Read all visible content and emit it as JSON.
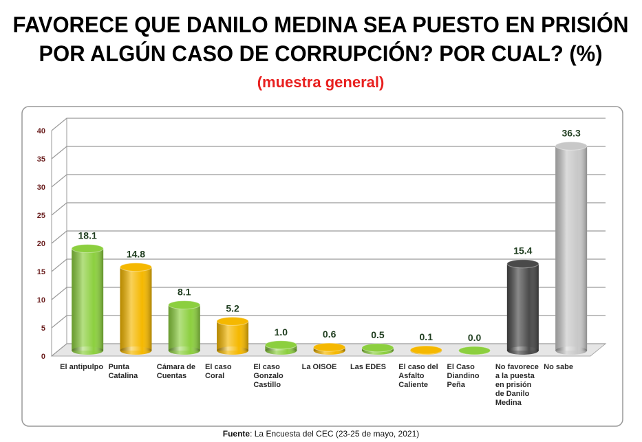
{
  "chart_data": {
    "type": "bar3d",
    "title": [
      "FAVORECE QUE DANILO MEDINA SEA PUESTO EN PRISIÓN",
      "POR ALGÚN CASO DE CORRUPCIÓN? POR CUAL? (%)"
    ],
    "subtitle": "(muestra general)",
    "categories": [
      "El antipulpo",
      "Punta Catalina",
      "Cámara de Cuentas",
      "El caso Coral",
      "El caso Gonzalo Castillo",
      "La OISOE",
      "Las EDES",
      "El caso del Asfalto Caliente",
      "El Caso Diandino Peña",
      "No favorece a la puesta en prisión de Danilo Medina",
      "No sabe"
    ],
    "values": [
      18.1,
      14.8,
      8.1,
      5.2,
      1.0,
      0.6,
      0.5,
      0.1,
      0.0,
      15.4,
      36.3
    ],
    "value_labels": [
      "18.1",
      "14.8",
      "8.1",
      "5.2",
      "1.0",
      "0.6",
      "0.5",
      "0.1",
      "0.0",
      "15.4",
      "36.3"
    ],
    "colors": [
      "#8ccf3f",
      "#f5b800",
      "#8ccf3f",
      "#f5b800",
      "#8ccf3f",
      "#f5b800",
      "#8ccf3f",
      "#f5b800",
      "#8ccf3f",
      "#4a4a4a",
      "#c8c8c8"
    ],
    "ylim": [
      0,
      40
    ],
    "yticks": [
      0,
      5,
      10,
      15,
      20,
      25,
      30,
      35,
      40
    ],
    "grid": true,
    "source_label": "Fuente",
    "source_text": ": La Encuesta del CEC (23-25 de mayo, 2021)"
  }
}
